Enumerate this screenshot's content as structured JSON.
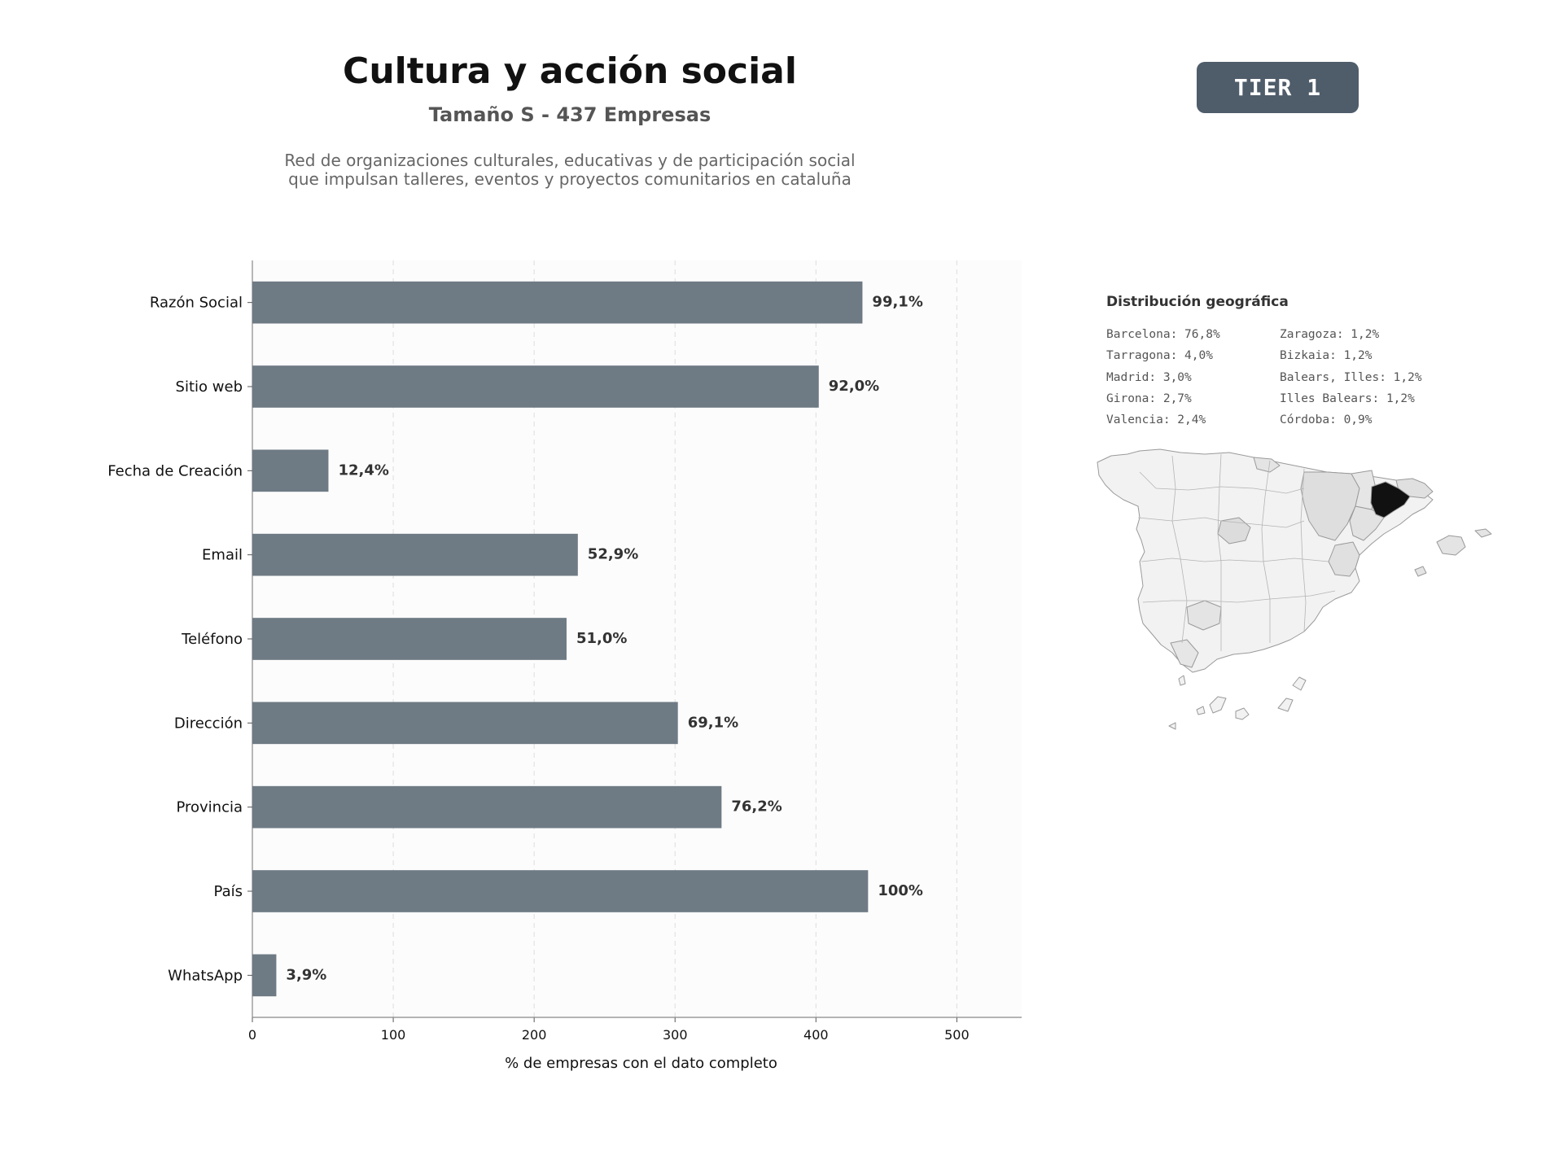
{
  "header": {
    "title": "Cultura y acción social",
    "subtitle": "Tamaño S - 437 Empresas",
    "description_line1": "Red de organizaciones culturales, educativas y de participación social",
    "description_line2": "que impulsan talleres, eventos y proyectos comunitarios en cataluña",
    "tier": "TIER 1"
  },
  "chart_data": {
    "type": "bar",
    "orientation": "horizontal",
    "categories": [
      "Razón Social",
      "Sitio web",
      "Fecha de Creación",
      "Email",
      "Teléfono",
      "Dirección",
      "Provincia",
      "País",
      "WhatsApp"
    ],
    "values": [
      433,
      402,
      54,
      231,
      223,
      302,
      333,
      437,
      17
    ],
    "data_labels": [
      "99,1%",
      "92,0%",
      "12,4%",
      "52,9%",
      "51,0%",
      "69,1%",
      "76,2%",
      "100%",
      "3,9%"
    ],
    "xlabel": "% de empresas con el dato completo",
    "ylabel": "",
    "xlim": [
      0,
      546
    ],
    "xticks": [
      0,
      100,
      200,
      300,
      400,
      500
    ],
    "grid": "vertical dashed",
    "bar_color": "#6e7a84"
  },
  "geo": {
    "title": "Distribución geográfica",
    "col1": [
      "Barcelona: 76,8%",
      "Tarragona: 4,0%",
      "Madrid: 3,0%",
      "Girona: 2,7%",
      "Valencia: 2,4%"
    ],
    "col2": [
      "Zaragoza: 1,2%",
      "Bizkaia: 1,2%",
      "Balears, Illes: 1,2%",
      "Illes Balears: 1,2%",
      "Córdoba: 0,9%"
    ],
    "highlight_color": "#111111",
    "base_color": "#f2f2f2"
  }
}
